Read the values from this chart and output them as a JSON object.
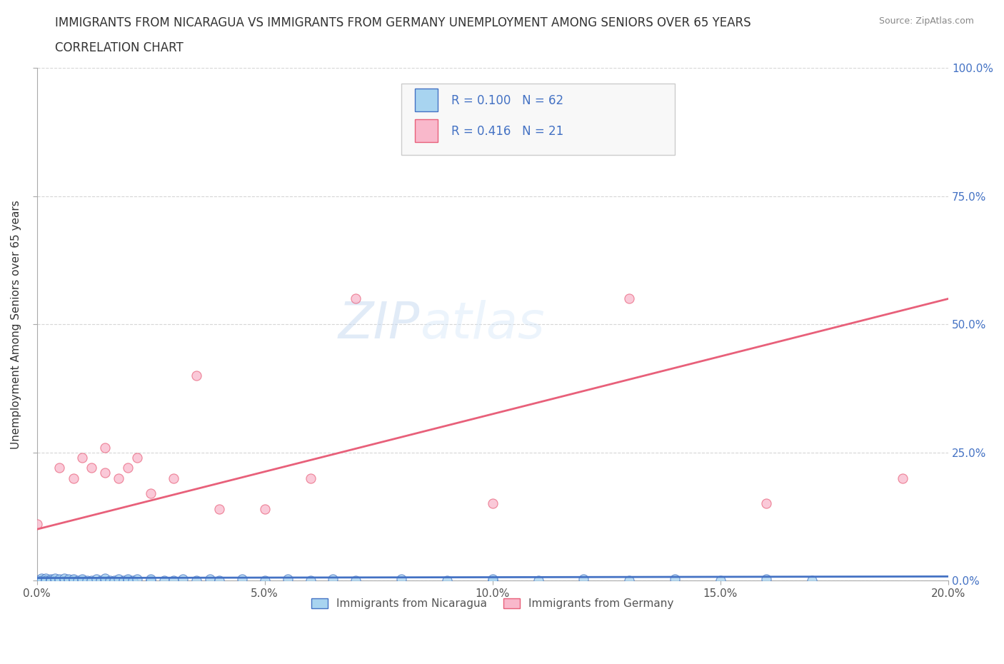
{
  "title_line1": "IMMIGRANTS FROM NICARAGUA VS IMMIGRANTS FROM GERMANY UNEMPLOYMENT AMONG SENIORS OVER 65 YEARS",
  "title_line2": "CORRELATION CHART",
  "source": "Source: ZipAtlas.com",
  "ylabel": "Unemployment Among Seniors over 65 years",
  "xlim": [
    0.0,
    0.2
  ],
  "ylim": [
    0.0,
    1.0
  ],
  "xtick_labels": [
    "0.0%",
    "5.0%",
    "10.0%",
    "15.0%",
    "20.0%"
  ],
  "xtick_values": [
    0.0,
    0.05,
    0.1,
    0.15,
    0.2
  ],
  "ytick_values": [
    0.0,
    0.25,
    0.5,
    0.75,
    1.0
  ],
  "right_ytick_labels": [
    "0.0%",
    "25.0%",
    "50.0%",
    "75.0%",
    "100.0%"
  ],
  "color_nicaragua": "#A8D4F0",
  "color_germany": "#F9B8CB",
  "color_text_blue": "#4472C4",
  "color_line_nicaragua": "#4472C4",
  "color_line_germany": "#E8607A",
  "watermark_zip": "ZIP",
  "watermark_atlas": "atlas",
  "nic_x": [
    0.0,
    0.001,
    0.001,
    0.001,
    0.002,
    0.002,
    0.002,
    0.003,
    0.003,
    0.003,
    0.004,
    0.004,
    0.005,
    0.005,
    0.006,
    0.006,
    0.007,
    0.007,
    0.008,
    0.008,
    0.009,
    0.01,
    0.01,
    0.011,
    0.012,
    0.013,
    0.014,
    0.015,
    0.015,
    0.016,
    0.017,
    0.018,
    0.019,
    0.02,
    0.02,
    0.021,
    0.022,
    0.025,
    0.025,
    0.028,
    0.03,
    0.032,
    0.035,
    0.038,
    0.04,
    0.045,
    0.05,
    0.055,
    0.06,
    0.065,
    0.07,
    0.08,
    0.09,
    0.1,
    0.1,
    0.11,
    0.12,
    0.13,
    0.14,
    0.15,
    0.16,
    0.17
  ],
  "nic_y": [
    0.0,
    0.0,
    0.005,
    0.0,
    0.0,
    0.005,
    0.0,
    0.0,
    0.003,
    0.0,
    0.0,
    0.005,
    0.0,
    0.003,
    0.0,
    0.005,
    0.0,
    0.003,
    0.0,
    0.003,
    0.0,
    0.0,
    0.003,
    0.0,
    0.0,
    0.003,
    0.0,
    0.0,
    0.005,
    0.0,
    0.0,
    0.003,
    0.0,
    0.0,
    0.003,
    0.0,
    0.003,
    0.0,
    0.003,
    0.0,
    0.0,
    0.003,
    0.0,
    0.003,
    0.0,
    0.003,
    0.0,
    0.003,
    0.0,
    0.003,
    0.0,
    0.003,
    0.0,
    0.0,
    0.003,
    0.0,
    0.003,
    0.0,
    0.003,
    0.0,
    0.003,
    0.0
  ],
  "ger_x": [
    0.0,
    0.005,
    0.008,
    0.01,
    0.012,
    0.015,
    0.015,
    0.018,
    0.02,
    0.022,
    0.025,
    0.03,
    0.035,
    0.04,
    0.05,
    0.06,
    0.07,
    0.1,
    0.13,
    0.16,
    0.19
  ],
  "ger_y": [
    0.11,
    0.22,
    0.2,
    0.24,
    0.22,
    0.26,
    0.21,
    0.2,
    0.22,
    0.24,
    0.17,
    0.2,
    0.4,
    0.14,
    0.14,
    0.2,
    0.55,
    0.15,
    0.55,
    0.15,
    0.2
  ],
  "nic_line_x": [
    0.0,
    0.2
  ],
  "nic_line_y": [
    0.005,
    0.008
  ],
  "ger_line_x": [
    0.0,
    0.2
  ],
  "ger_line_y": [
    0.1,
    0.55
  ]
}
